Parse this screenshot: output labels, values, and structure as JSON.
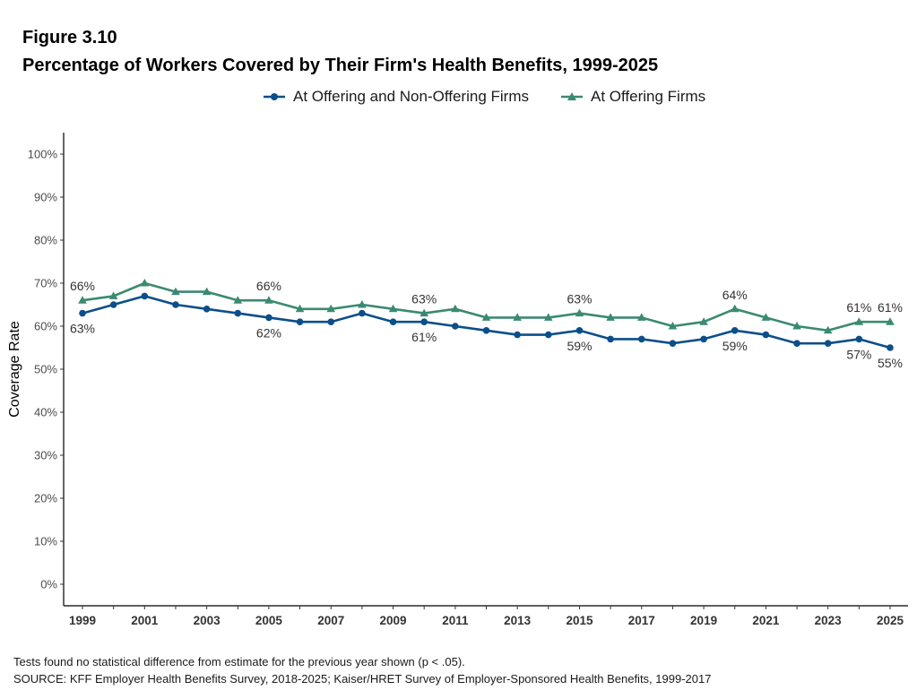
{
  "figure_label": "Figure 3.10",
  "title": "Percentage of Workers Covered by Their Firm's Health Benefits, 1999-2025",
  "notes": "Tests found no statistical difference from estimate for the previous year shown (p < .05).",
  "source": "SOURCE: KFF Employer Health Benefits Survey, 2018-2025; Kaiser/HRET Survey of Employer-Sponsored Health Benefits, 1999-2017",
  "colors": {
    "series_all": "#0b4f8a",
    "series_offering": "#3a8a72",
    "axis": "#000000",
    "tick_text": "#4d4d4d"
  },
  "chart_data": {
    "type": "line",
    "title": "Percentage of Workers Covered by Their Firm's Health Benefits, 1999-2025",
    "xlabel": "",
    "ylabel": "Coverage Rate",
    "ylim": [
      0,
      100
    ],
    "yticks": [
      0,
      10,
      20,
      30,
      40,
      50,
      60,
      70,
      80,
      90,
      100
    ],
    "ytick_labels": [
      "0%",
      "10%",
      "20%",
      "30%",
      "40%",
      "50%",
      "60%",
      "70%",
      "80%",
      "90%",
      "100%"
    ],
    "x": [
      1999,
      2000,
      2001,
      2002,
      2003,
      2004,
      2005,
      2006,
      2007,
      2008,
      2009,
      2010,
      2011,
      2012,
      2013,
      2014,
      2015,
      2016,
      2017,
      2018,
      2019,
      2020,
      2021,
      2022,
      2023,
      2024,
      2025
    ],
    "xtick_labels": [
      "1999",
      "2001",
      "2003",
      "2005",
      "2007",
      "2009",
      "2011",
      "2013",
      "2015",
      "2017",
      "2019",
      "2021",
      "2023",
      "2025"
    ],
    "legend_position": "top",
    "grid": false,
    "series": [
      {
        "name": "At Offering and Non-Offering Firms",
        "marker": "circle",
        "values": [
          63,
          65,
          67,
          65,
          64,
          63,
          62,
          61,
          61,
          63,
          61,
          61,
          60,
          59,
          58,
          58,
          59,
          57,
          57,
          56,
          57,
          59,
          58,
          56,
          56,
          57,
          55
        ],
        "labels": [
          {
            "year": 1999,
            "text": "63%",
            "pos": "below"
          },
          {
            "year": 2005,
            "text": "62%",
            "pos": "below"
          },
          {
            "year": 2010,
            "text": "61%",
            "pos": "below"
          },
          {
            "year": 2015,
            "text": "59%",
            "pos": "below"
          },
          {
            "year": 2020,
            "text": "59%",
            "pos": "below"
          },
          {
            "year": 2024,
            "text": "57%",
            "pos": "below"
          },
          {
            "year": 2025,
            "text": "55%",
            "pos": "below"
          }
        ]
      },
      {
        "name": "At Offering Firms",
        "marker": "triangle",
        "values": [
          66,
          67,
          70,
          68,
          68,
          66,
          66,
          64,
          64,
          65,
          64,
          63,
          64,
          62,
          62,
          62,
          63,
          62,
          62,
          60,
          61,
          64,
          62,
          60,
          59,
          61,
          61
        ],
        "labels": [
          {
            "year": 1999,
            "text": "66%",
            "pos": "above"
          },
          {
            "year": 2005,
            "text": "66%",
            "pos": "above"
          },
          {
            "year": 2010,
            "text": "63%",
            "pos": "above"
          },
          {
            "year": 2015,
            "text": "63%",
            "pos": "above"
          },
          {
            "year": 2020,
            "text": "64%",
            "pos": "above"
          },
          {
            "year": 2024,
            "text": "61%",
            "pos": "above"
          },
          {
            "year": 2025,
            "text": "61%",
            "pos": "above"
          }
        ]
      }
    ]
  }
}
